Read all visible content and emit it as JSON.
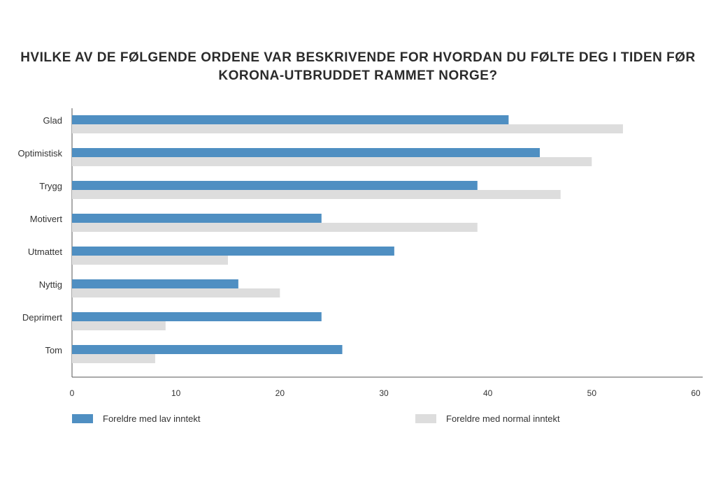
{
  "chart_data": {
    "type": "bar",
    "orientation": "horizontal",
    "title_lines": [
      "HVILKE AV DE FØLGENDE ORDENE VAR BESKRIVENDE FOR HVORDAN DU FØLTE DEG I TIDEN FØR",
      "KORONA-UTBRUDDET RAMMET NORGE?"
    ],
    "categories": [
      "Glad",
      "Optimistisk",
      "Trygg",
      "Motivert",
      "Utmattet",
      "Nyttig",
      "Deprimert",
      "Tom"
    ],
    "series": [
      {
        "name": "Foreldre med lav inntekt",
        "color": "#4f8fc2",
        "values": [
          42,
          45,
          39,
          24,
          31,
          16,
          24,
          26
        ]
      },
      {
        "name": "Foreldre med normal inntekt",
        "color": "#dddddd",
        "values": [
          53,
          50,
          47,
          39,
          15,
          20,
          9,
          8
        ]
      }
    ],
    "xlim": [
      0,
      60
    ],
    "xticks": [
      "0",
      "10",
      "20",
      "30",
      "40",
      "50",
      "60"
    ],
    "grid": false,
    "legend_position": "bottom"
  }
}
